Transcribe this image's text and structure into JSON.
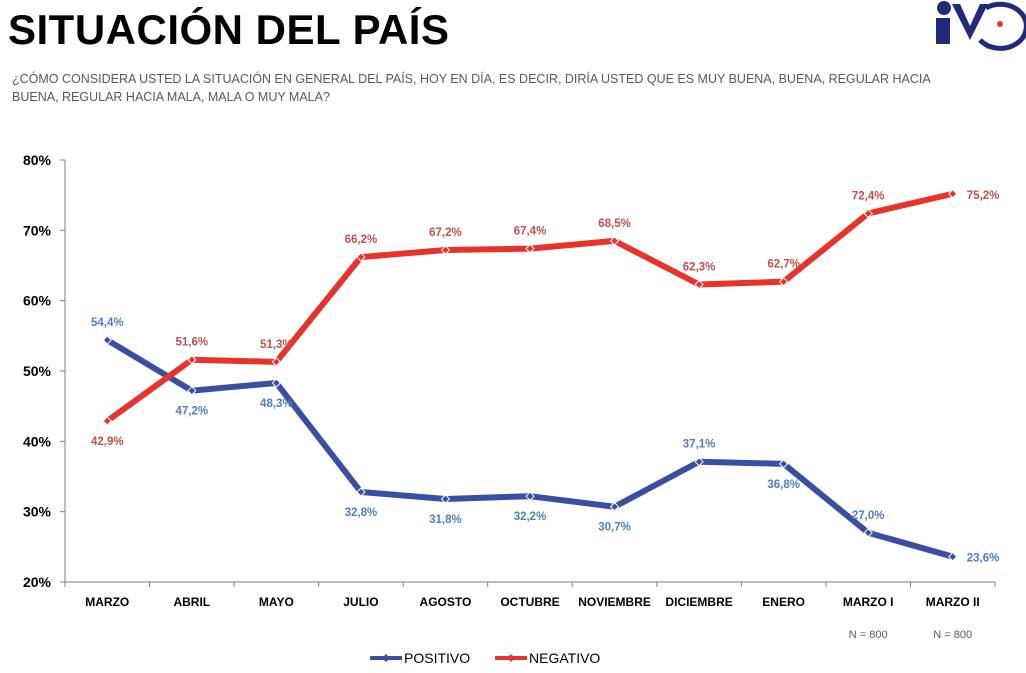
{
  "header": {
    "title": "SITUACIÓN DEL PAÍS",
    "question": "¿CÓMO CONSIDERA USTED LA SITUACIÓN EN GENERAL DEL PAÍS, HOY EN DÍA, ES DECIR, DIRÍA USTED QUE ES MUY BUENA, BUENA, REGULAR HACIA BUENA, REGULAR HACIA MALA, MALA O MUY MALA?",
    "logo": {
      "icon": "iv-logo-icon",
      "primary_color": "#1f2a7a"
    }
  },
  "chart_data": {
    "type": "line",
    "categories": [
      "MARZO",
      "ABRIL",
      "MAYO",
      "JULIO",
      "AGOSTO",
      "OCTUBRE",
      "NOVIEMBRE",
      "DICIEMBRE",
      "ENERO",
      "MARZO I",
      "MARZO II"
    ],
    "series": [
      {
        "name": "POSITIVO",
        "color": "#3a4fa3",
        "label_color": "#4f7fbf",
        "values": [
          54.4,
          47.2,
          48.3,
          32.8,
          31.8,
          32.2,
          30.7,
          37.1,
          36.8,
          27.0,
          23.6
        ],
        "labels": [
          "54,4%",
          "47,2%",
          "48,3%",
          "32,8%",
          "31,8%",
          "32,2%",
          "30,7%",
          "37,1%",
          "36,8%",
          "27,0%",
          "23,6%"
        ],
        "label_pos": [
          "above",
          "below",
          "below",
          "below",
          "below",
          "below",
          "below",
          "above",
          "below",
          "above",
          "right"
        ]
      },
      {
        "name": "NEGATIVO",
        "color": "#e8332a",
        "label_color": "#c0504d",
        "values": [
          42.9,
          51.6,
          51.3,
          66.2,
          67.2,
          67.4,
          68.5,
          62.3,
          62.7,
          72.4,
          75.2
        ],
        "labels": [
          "42,9%",
          "51,6%",
          "51,3%",
          "66,2%",
          "67,2%",
          "67,4%",
          "68,5%",
          "62,3%",
          "62,7%",
          "72,4%",
          "75,2%"
        ],
        "label_pos": [
          "below",
          "above",
          "above",
          "above",
          "above",
          "above",
          "above",
          "above",
          "above",
          "above",
          "right"
        ]
      }
    ],
    "y_ticks": [
      "20%",
      "30%",
      "40%",
      "50%",
      "60%",
      "70%",
      "80%"
    ],
    "ylim": [
      20,
      80
    ],
    "grid": false,
    "legend": "bottom-center",
    "notes": [
      {
        "category": "MARZO I",
        "text": "N = 800"
      },
      {
        "category": "MARZO II",
        "text": "N = 800"
      }
    ]
  }
}
